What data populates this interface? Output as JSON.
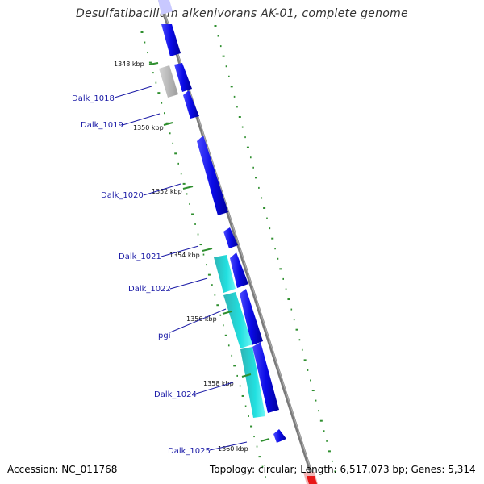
{
  "title": "Desulfatibacillum alkenivorans AK-01, complete genome",
  "footer": {
    "accession": "Accession: NC_011768",
    "summary": "Topology: circular; Length: 6,517,073 bp; Genes: 5,314"
  },
  "colors": {
    "forward_gene": "#0a0ae6",
    "rna_or_pseudo": "#b8b8b8",
    "highlight_gene": "#22dcdc",
    "backbone": "#888888",
    "gc_ticks": "#2f8f2f",
    "label_text": "#1a1aa6",
    "end_marker": "#e81818"
  },
  "tick_labels": [
    "1348 kbp",
    "1350 kbp",
    "1352 kbp",
    "1354 kbp",
    "1356 kbp",
    "1358 kbp",
    "1360 kbp"
  ],
  "gene_labels": [
    "Dalk_1018",
    "Dalk_1019",
    "Dalk_1020",
    "Dalk_1021",
    "Dalk_1022",
    "pgi",
    "Dalk_1024",
    "Dalk_1025"
  ]
}
